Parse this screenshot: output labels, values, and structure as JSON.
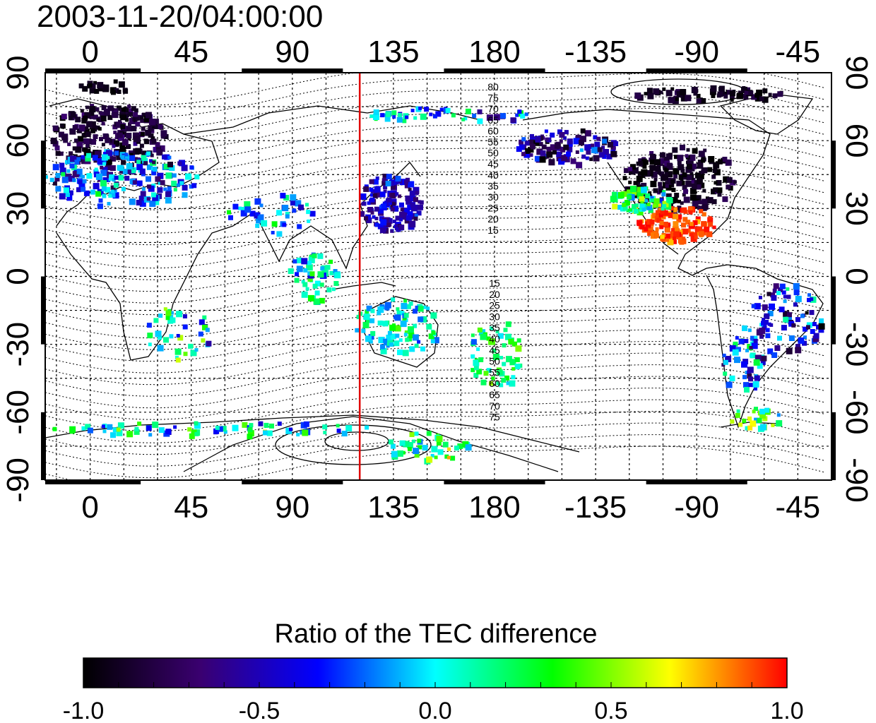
{
  "title": "2003-11-20/04:00:00",
  "map": {
    "x_ticks": [
      "0",
      "45",
      "90",
      "135",
      "180",
      "-135",
      "-90",
      "-45"
    ],
    "y_ticks": [
      "90",
      "60",
      "30",
      "0",
      "-30",
      "-60",
      "-90"
    ],
    "lon_range": [
      -20,
      330
    ],
    "lat_range": [
      -90,
      90
    ],
    "marker_longitude": 120,
    "marker_color": "#e00000",
    "contour_labels_north": [
      "80",
      "75",
      "70",
      "65",
      "60",
      "55",
      "50",
      "45",
      "40",
      "35",
      "30",
      "25",
      "20",
      "15"
    ],
    "contour_labels_south": [
      "15",
      "20",
      "25",
      "30",
      "35",
      "40",
      "45",
      "50",
      "55",
      "60",
      "65",
      "70",
      "75"
    ]
  },
  "colorbar": {
    "label": "Ratio of the TEC difference",
    "ticks": [
      "-1.0",
      "-0.5",
      "0.0",
      "0.5",
      "1.0"
    ],
    "min": -1.0,
    "max": 1.0,
    "colors": [
      "#000000",
      "#3a0070",
      "#0000ff",
      "#00ffff",
      "#00ff00",
      "#ffff00",
      "#ff0000"
    ]
  }
}
